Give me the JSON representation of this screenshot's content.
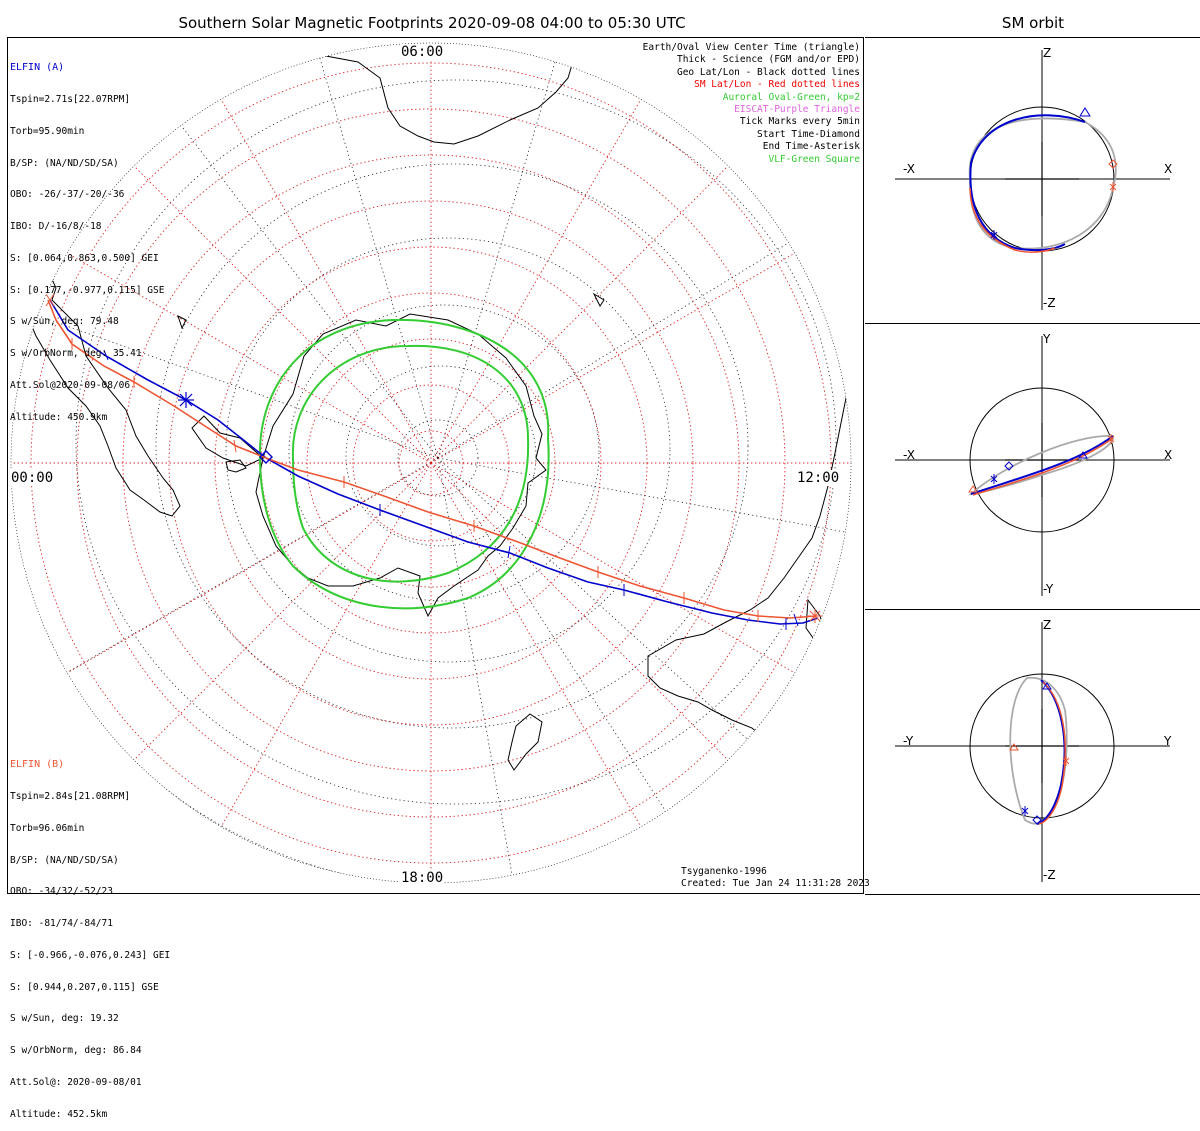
{
  "header": {
    "title": "Southern Solar Magnetic Footprints 2020-09-08 04:00 to 05:30 UTC",
    "orbit_title": "SM orbit"
  },
  "colors": {
    "elfin_a": "#0000cc",
    "elfin_b": "#ee5533",
    "oval": "#33cc33",
    "sm_grid": "#dd2222",
    "geo_grid": "#222222",
    "orbit_gray": "#aaaaaa"
  },
  "mlt_labels": {
    "top": "06:00",
    "left": "00:00",
    "right": "12:00",
    "bottom": "18:00"
  },
  "elfin_a": {
    "name": "ELFIN (A)",
    "lines": [
      "Tspin=2.71s[22.07RPM]",
      "Torb=95.90min",
      "B/SP: (NA/ND/SD/SA)",
      "OBO: -26/-37/-20/-36",
      "IBO: D/-16/8/-18",
      "S: [0.064,0.863,0.500] GEI",
      "S: [0.177,-0.977,0.115] GSE",
      "S w/Sun, deg: 79.48",
      "S w/OrbNorm, deg: 35.41",
      "Att.Sol@2020-09-08/06",
      "Altitude: 450.9km"
    ]
  },
  "elfin_b": {
    "name": "ELFIN (B)",
    "lines": [
      "Tspin=2.84s[21.08RPM]",
      "Torb=96.06min",
      "B/SP: (NA/ND/SD/SA)",
      "OBO: -34/32/-52/23",
      "IBO: -81/74/-84/71",
      "S: [-0.966,-0.076,0.243] GEI",
      "S: [0.944,0.207,0.115] GSE",
      "S w/Sun, deg: 19.32",
      "S w/OrbNorm, deg: 86.84",
      "Att.Sol@: 2020-09-08/01",
      "Altitude: 452.5km"
    ]
  },
  "legend": [
    {
      "text": "Earth/Oval View Center Time (triangle)",
      "color": "#000000"
    },
    {
      "text": "Thick - Science (FGM and/or EPD)",
      "color": "#000000"
    },
    {
      "text": "Geo Lat/Lon - Black dotted lines",
      "color": "#000000"
    },
    {
      "text": "SM Lat/Lon - Red dotted lines",
      "color": "#ee0000"
    },
    {
      "text": "Auroral Oval-Green, kp=2",
      "color": "#33cc33"
    },
    {
      "text": "EISCAT-Purple Triangle",
      "color": "#dd66dd"
    },
    {
      "text": "Tick Marks every 5min",
      "color": "#000000"
    },
    {
      "text": "Start Time-Diamond",
      "color": "#000000"
    },
    {
      "text": "End Time-Asterisk",
      "color": "#000000"
    },
    {
      "text": "VLF-Green Square",
      "color": "#33cc33"
    }
  ],
  "credits": {
    "model": "Tsyganenko-1996",
    "created": "Created: Tue Jan 24 11:31:28 2023"
  },
  "orbit_panels": [
    {
      "id": "xz",
      "left": "-X",
      "right": "X",
      "top": "Z",
      "bottom": "-Z"
    },
    {
      "id": "xy",
      "left": "-X",
      "right": "X",
      "top": "Y",
      "bottom": "-Y"
    },
    {
      "id": "yz",
      "left": "-Y",
      "right": "Y",
      "top": "Z",
      "bottom": "-Z"
    }
  ]
}
